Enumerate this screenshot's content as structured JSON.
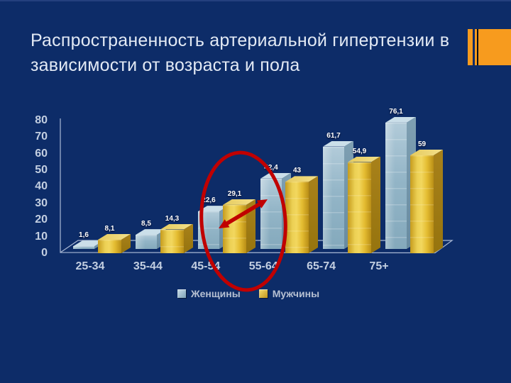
{
  "slide": {
    "title": "Распространенность артериальной гипертензии в зависимости от возраста и пола"
  },
  "colors": {
    "background": "#0d2c68",
    "top_edge": "#24407e",
    "title_text": "#e2e9f4",
    "axis_text": "#c3cfe1",
    "axis_line": "#a9b8d4",
    "value_label_text": "#ffffff",
    "legend_text": "#b6c0d2",
    "accent_orange": "#f79b1e",
    "annotation_red": "#c00000",
    "women_color": "#9cbccd",
    "men_color": "#e3bb2e"
  },
  "chart_data": {
    "type": "bar",
    "style": "3d-clustered",
    "title": "",
    "xlabel": "",
    "ylabel": "",
    "categories": [
      "25-34",
      "35-44",
      "45-54",
      "55-64",
      "65-74",
      "75+"
    ],
    "series": [
      {
        "name": "Женщины",
        "values": [
          1.6,
          8.5,
          22.6,
          42.4,
          61.7,
          76.1
        ],
        "value_labels": [
          "1,6",
          "8,5",
          "22,6",
          "42,4",
          "61,7",
          "76,1"
        ]
      },
      {
        "name": "Мужчины",
        "values": [
          8.1,
          14.3,
          29.1,
          43,
          54.9,
          59
        ],
        "value_labels": [
          "8,1",
          "14,3",
          "29,1",
          "43",
          "54,9",
          "59"
        ]
      }
    ],
    "ylim": [
      0,
      80
    ],
    "yticks": [
      0,
      10,
      20,
      30,
      40,
      50,
      60,
      70,
      80
    ],
    "grid": false,
    "legend_position": "bottom"
  },
  "annotations": [
    {
      "shape": "ellipse",
      "purpose": "highlights crossover between 45-54 and 55-64 groups",
      "color": "#c00000"
    },
    {
      "shape": "double-arrow",
      "purpose": "connects women 45-54 bar with women 55-64 bar",
      "color": "#c00000"
    }
  ]
}
